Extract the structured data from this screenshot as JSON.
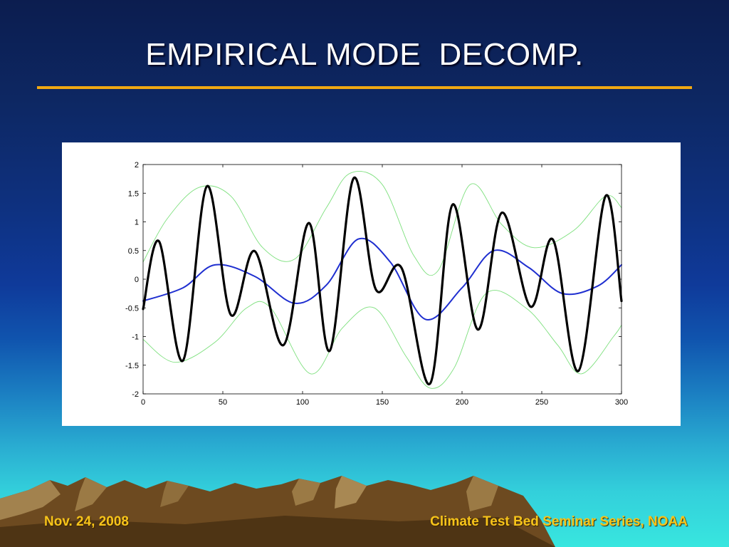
{
  "slide": {
    "title": "EMPIRICAL MODE  DECOMP.",
    "footer_left": "Nov. 24, 2008",
    "footer_right": "Climate Test Bed Seminar Series, NOAA"
  },
  "colors": {
    "title_rule": "#f0a812",
    "footer_text": "#f7c41a",
    "signal": "#000000",
    "mean_envelope": "#1f2fd0",
    "envelopes": "#7ee07e"
  },
  "chart_data": {
    "type": "line",
    "title": "",
    "xlabel": "",
    "ylabel": "",
    "xlim": [
      0,
      300
    ],
    "ylim": [
      -2,
      2
    ],
    "x_ticks": [
      "0",
      "50",
      "100",
      "150",
      "200",
      "250",
      "300"
    ],
    "y_ticks": [
      "2",
      "1.5",
      "1",
      "0.5",
      "0",
      "-0.5",
      "-1",
      "-1.5",
      "-2"
    ],
    "grid": false,
    "legend": "none",
    "series": [
      {
        "role": "signal",
        "x": [
          0,
          10,
          25,
          40,
          55,
          70,
          88,
          104,
          117,
          132,
          146,
          162,
          180,
          194,
          210,
          225,
          243,
          257,
          273,
          290,
          300
        ],
        "y": [
          -0.52,
          0.66,
          -1.42,
          1.62,
          -0.62,
          0.49,
          -1.15,
          0.98,
          -1.25,
          1.76,
          -0.18,
          0.2,
          -1.82,
          1.3,
          -0.88,
          1.16,
          -0.48,
          0.69,
          -1.6,
          1.45,
          -0.38
        ]
      },
      {
        "role": "mean",
        "x": [
          0,
          25,
          45,
          70,
          95,
          115,
          135,
          155,
          177,
          200,
          220,
          242,
          263,
          285,
          300
        ],
        "y": [
          -0.38,
          -0.15,
          0.25,
          0.05,
          -0.42,
          -0.1,
          0.7,
          0.3,
          -0.7,
          -0.15,
          0.5,
          0.2,
          -0.25,
          -0.12,
          0.25
        ]
      },
      {
        "role": "upper-envelope",
        "x": [
          0,
          15,
          35,
          55,
          75,
          95,
          115,
          130,
          150,
          170,
          185,
          205,
          225,
          245,
          270,
          290,
          300
        ],
        "y": [
          0.3,
          1.05,
          1.6,
          1.45,
          0.55,
          0.35,
          1.25,
          1.85,
          1.65,
          0.4,
          0.15,
          1.65,
          0.95,
          0.55,
          0.85,
          1.45,
          1.25
        ]
      },
      {
        "role": "lower-envelope",
        "x": [
          0,
          20,
          45,
          65,
          80,
          105,
          125,
          145,
          165,
          180,
          195,
          215,
          240,
          260,
          275,
          295,
          300
        ],
        "y": [
          -1.05,
          -1.45,
          -1.1,
          -0.5,
          -0.5,
          -1.65,
          -0.85,
          -0.5,
          -1.35,
          -1.9,
          -1.55,
          -0.25,
          -0.5,
          -1.15,
          -1.65,
          -1.0,
          -0.8
        ]
      }
    ]
  }
}
